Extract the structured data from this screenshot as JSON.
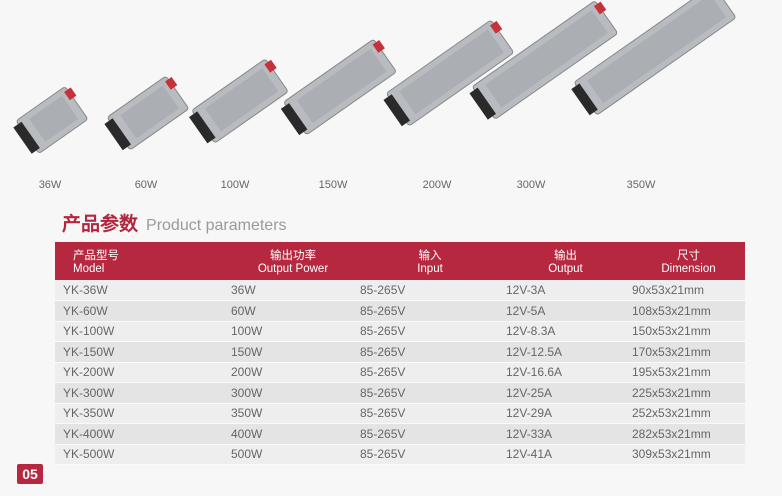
{
  "products": [
    {
      "label": "36W"
    },
    {
      "label": "60W"
    },
    {
      "label": "100W"
    },
    {
      "label": "150W"
    },
    {
      "label": "200W"
    },
    {
      "label": "300W"
    },
    {
      "label": "350W"
    }
  ],
  "section": {
    "title_cn": "产品参数",
    "title_en": "Product parameters"
  },
  "table": {
    "headers": [
      {
        "cn": "产品型号",
        "en": "Model"
      },
      {
        "cn": "输出功率",
        "en": "Output Power"
      },
      {
        "cn": "输入",
        "en": "Input"
      },
      {
        "cn": "输出",
        "en": "Output"
      },
      {
        "cn": "尺寸",
        "en": "Dimension"
      }
    ],
    "rows": [
      [
        "YK-36W",
        "36W",
        "85-265V",
        "12V-3A",
        "90x53x21mm"
      ],
      [
        "YK-60W",
        "60W",
        "85-265V",
        "12V-5A",
        "108x53x21mm"
      ],
      [
        "YK-100W",
        "100W",
        "85-265V",
        "12V-8.3A",
        "150x53x21mm"
      ],
      [
        "YK-150W",
        "150W",
        "85-265V",
        "12V-12.5A",
        "170x53x21mm"
      ],
      [
        "YK-200W",
        "200W",
        "85-265V",
        "12V-16.6A",
        "195x53x21mm"
      ],
      [
        "YK-300W",
        "300W",
        "85-265V",
        "12V-25A",
        "225x53x21mm"
      ],
      [
        "YK-350W",
        "350W",
        "85-265V",
        "12V-29A",
        "252x53x21mm"
      ],
      [
        "YK-400W",
        "400W",
        "85-265V",
        "12V-33A",
        "282x53x21mm"
      ],
      [
        "YK-500W",
        "500W",
        "85-265V",
        "12V-41A",
        "309x53x21mm"
      ]
    ]
  },
  "page_number": "05",
  "colors": {
    "accent": "#b5283f",
    "row_light": "#eeeeee",
    "row_dark": "#e4e4e4"
  }
}
